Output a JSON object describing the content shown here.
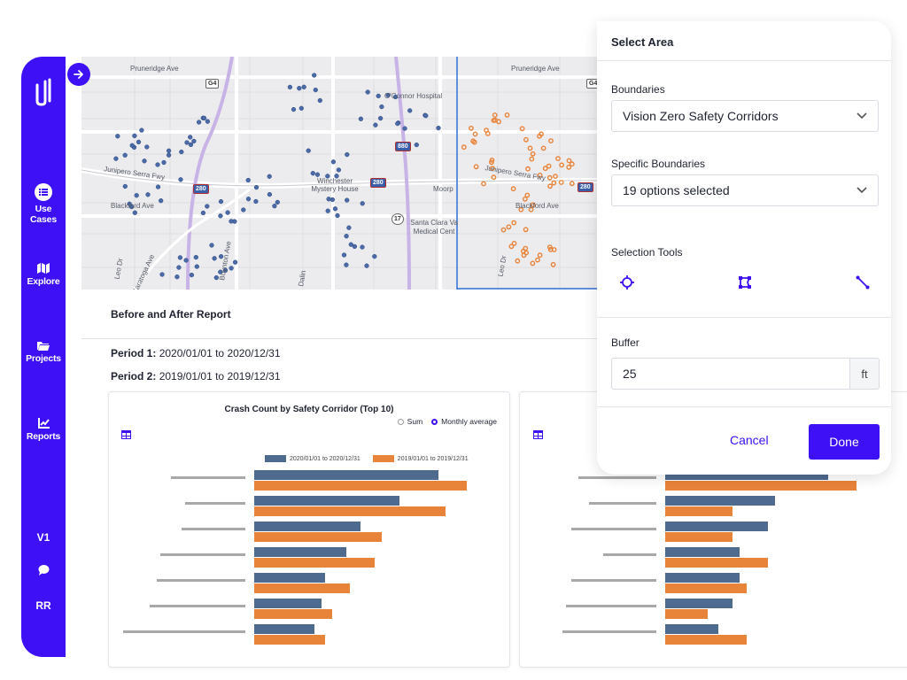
{
  "colors": {
    "brand": "#3d10f5",
    "series_2020": "#4f6a8f",
    "series_2019": "#e8833a",
    "label_bar": "#a8a8a8"
  },
  "sidebar": {
    "items": [
      {
        "label": "Use Cases",
        "icon": "list-icon"
      },
      {
        "label": "Explore",
        "icon": "map-icon"
      },
      {
        "label": "Projects",
        "icon": "folder-icon"
      },
      {
        "label": "Reports",
        "icon": "chart-icon"
      }
    ],
    "version": "V1",
    "user_initials": "RR"
  },
  "map": {
    "streets": [
      "Pruneridge Ave",
      "Pruneridge Ave",
      "O'Connor Hospital",
      "Junipero Serra Fwy",
      "Junipero Serra Fwy",
      "Blackford Ave",
      "Blackford Ave",
      "Winchester Mystery House",
      "Moorp",
      "Santa Clara Va Medical Cent",
      "Leo Dr",
      "Leo Dr",
      "Boynton Ave",
      "Saratoga Ave",
      "Dalin"
    ],
    "highway_shields": [
      "280",
      "280",
      "280",
      "880",
      "17",
      "G4",
      "G4"
    ]
  },
  "report": {
    "title": "Before and After Report",
    "period1_label": "Period 1:",
    "period1_value": "2020/01/01 to 2020/12/31",
    "period2_label": "Period 2:",
    "period2_value": "2019/01/01 to 2019/12/31"
  },
  "chart_data": [
    {
      "type": "bar",
      "orientation": "horizontal",
      "title": "Crash Count by Safety Corridor (Top 10)",
      "options": [
        "Sum",
        "Monthly average"
      ],
      "selected_option": "Monthly average",
      "categories": [
        "",
        "",
        "",
        "",
        "",
        "",
        ""
      ],
      "series": [
        {
          "name": "2020/01/01 to 2020/12/31",
          "values": [
            5.2,
            4.1,
            3.0,
            2.6,
            2.0,
            1.9,
            1.7
          ]
        },
        {
          "name": "2019/01/01 to 2019/12/31",
          "values": [
            6.0,
            5.4,
            3.6,
            3.4,
            2.7,
            2.2,
            2.0
          ]
        }
      ]
    },
    {
      "type": "bar",
      "orientation": "horizontal",
      "title": "",
      "categories": [
        "",
        "",
        "",
        "",
        "",
        "",
        ""
      ],
      "series": [
        {
          "name": "2020/01/01 to 2020/12/31",
          "values": [
            4.6,
            3.1,
            2.9,
            2.1,
            2.1,
            1.9,
            1.5
          ]
        },
        {
          "name": "2019/01/01 to 2019/12/31",
          "values": [
            5.4,
            1.9,
            1.9,
            2.9,
            2.3,
            1.2,
            2.3
          ]
        }
      ]
    }
  ],
  "panel": {
    "title": "Select Area",
    "boundaries_label": "Boundaries",
    "boundaries_value": "Vision Zero Safety Corridors",
    "specific_label": "Specific Boundaries",
    "specific_value": "19 options selected",
    "tools_label": "Selection Tools",
    "buffer_label": "Buffer",
    "buffer_value": "25",
    "buffer_unit": "ft",
    "cancel_label": "Cancel",
    "done_label": "Done"
  }
}
